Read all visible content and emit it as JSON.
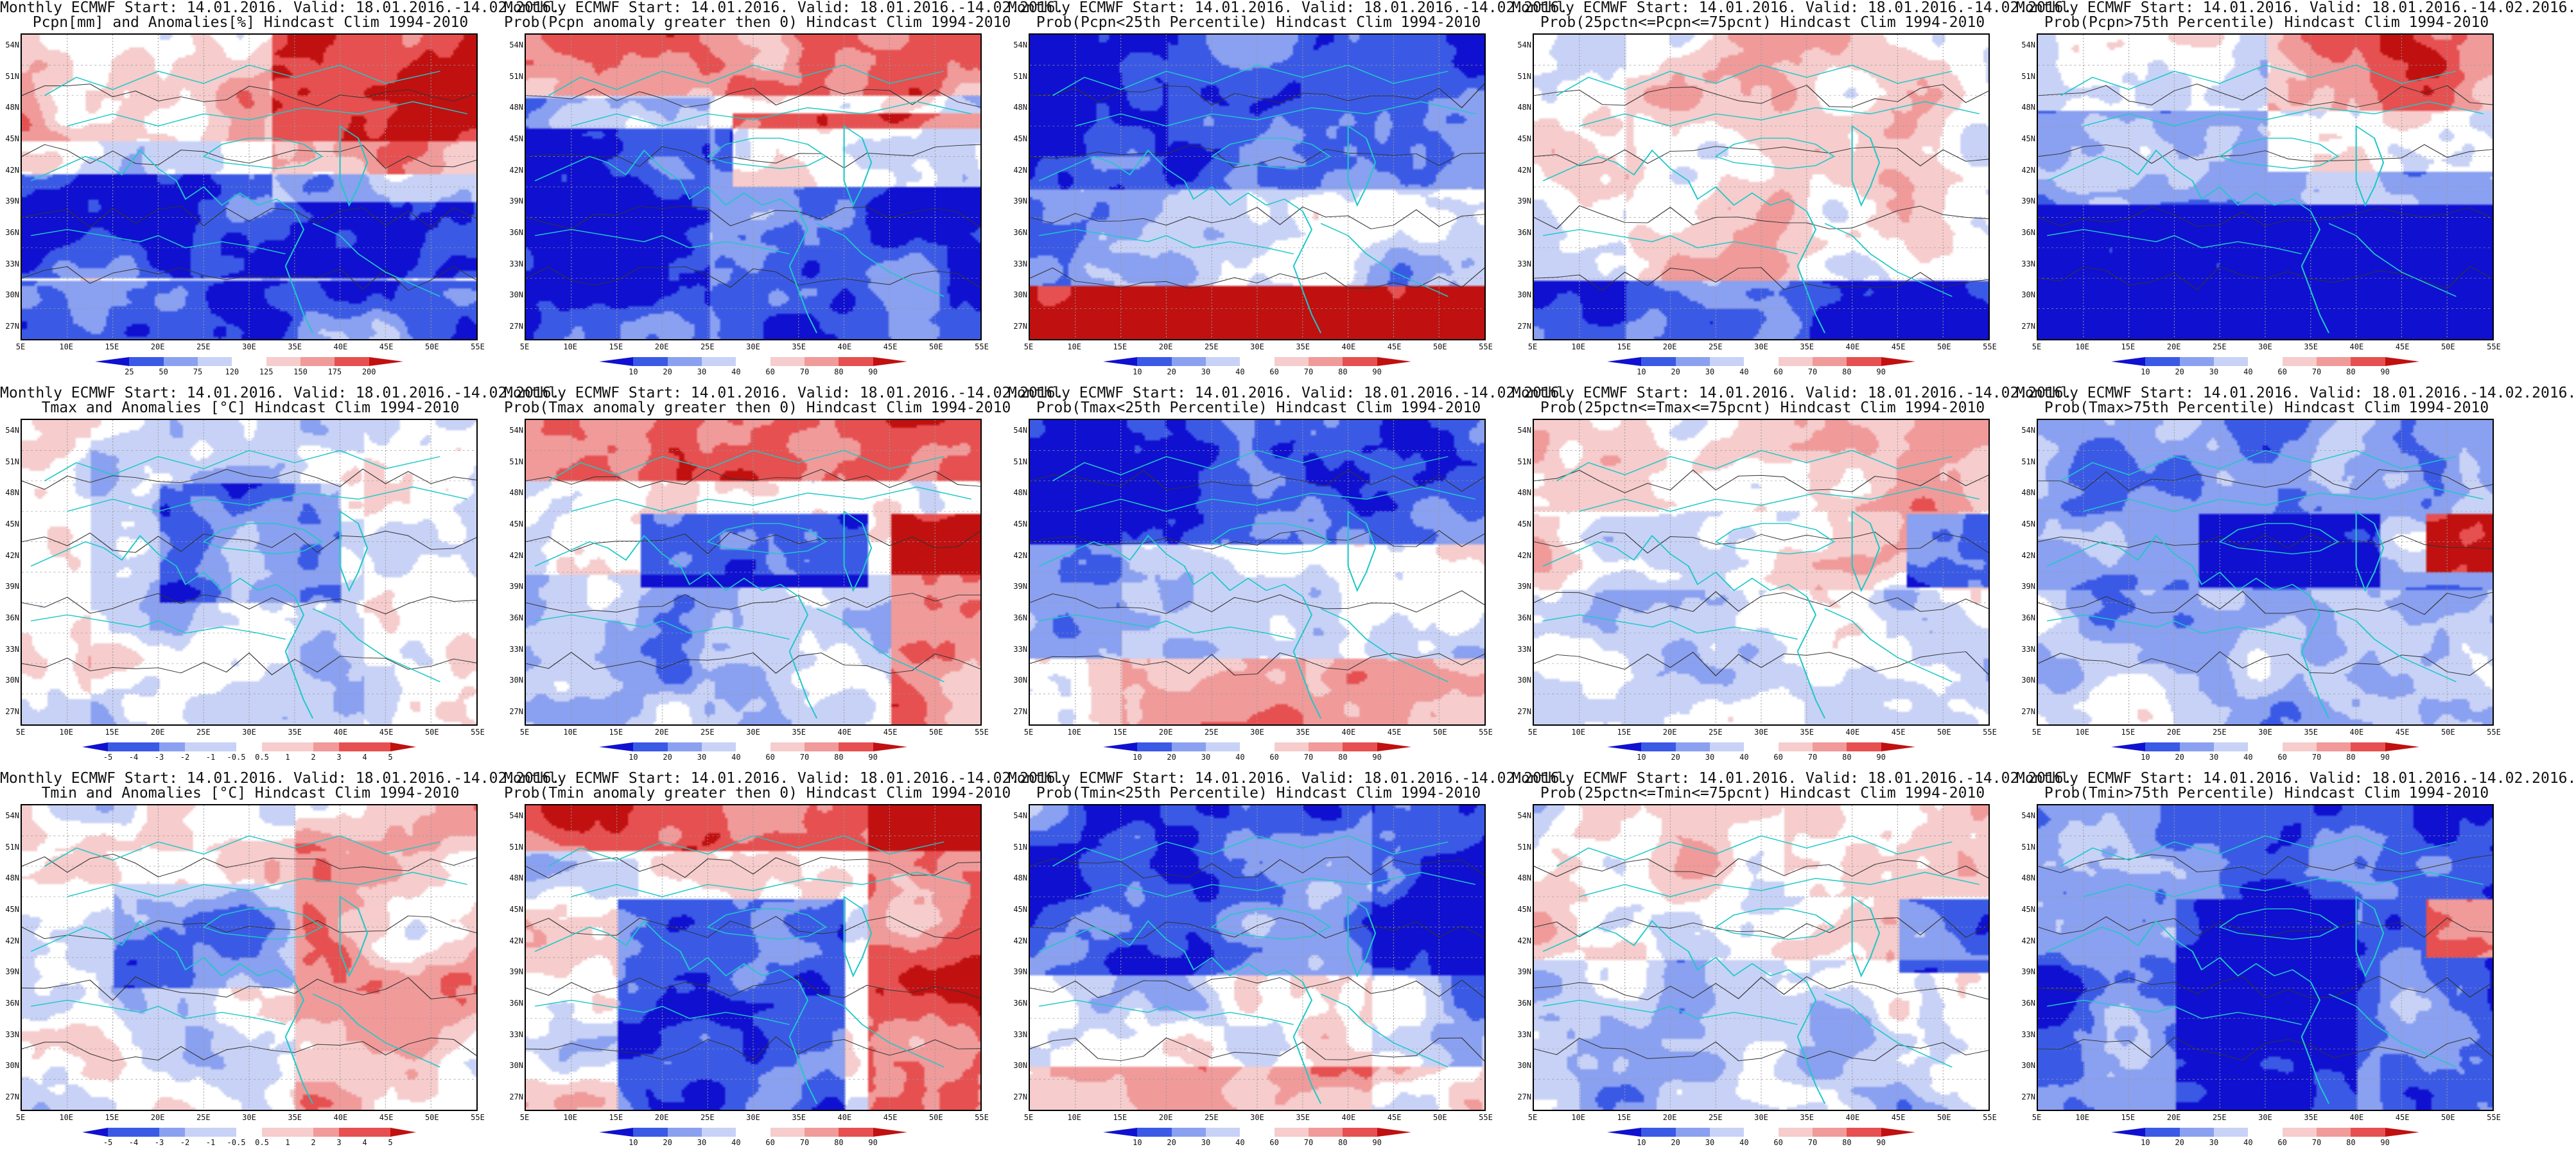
{
  "colors": {
    "dblue": "#1010d0",
    "mblue": "#3a5ae6",
    "lblue": "#8aa0f0",
    "pblue": "#c8d2f6",
    "white": "#ffffff",
    "pred": "#f6cccc",
    "lred": "#f09a9a",
    "mred": "#e65050",
    "dred": "#c01010",
    "coast": "#20c8c8",
    "contour": "#333333"
  },
  "axes": {
    "lat_labels": [
      "54N",
      "51N",
      "48N",
      "45N",
      "42N",
      "39N",
      "36N",
      "33N",
      "30N",
      "27N"
    ],
    "lon_labels": [
      "5E",
      "10E",
      "15E",
      "20E",
      "25E",
      "30E",
      "35E",
      "40E",
      "45E",
      "50E",
      "55E"
    ]
  },
  "colorbars": {
    "pcpn": [
      "25",
      "50",
      "75",
      "120",
      "125",
      "150",
      "175",
      "200"
    ],
    "prob": [
      "10",
      "20",
      "30",
      "40",
      "60",
      "70",
      "80",
      "90"
    ],
    "temp": [
      "-5",
      "-4",
      "-3",
      "-2",
      "-1",
      "-0.5",
      "0.5",
      "1",
      "2",
      "3",
      "4",
      "5"
    ]
  },
  "panels": [
    {
      "id": "r1c1",
      "line1": "Monthly ECMWF Start: 14.01.2016. Valid: 18.01.2016.-14.02.2016.",
      "line2": "Pcpn[mm] and Anomalies[%] Hindcast Clim 1994-2010",
      "bar": "pcpn",
      "scheme": "anom"
    },
    {
      "id": "r1c2",
      "line1": "Monthly ECMWF Start: 14.01.2016. Valid: 18.01.2016.-14.02.2016.",
      "line2": "Prob(Pcpn anomaly greater then 0) Hindcast Clim 1994-2010",
      "bar": "prob",
      "scheme": "prob_hi"
    },
    {
      "id": "r1c3",
      "line1": "Monthly ECMWF Start: 14.01.2016. Valid: 18.01.2016.-14.02.2016.",
      "line2": "Prob(Pcpn<25th Percentile) Hindcast Clim 1994-2010",
      "bar": "prob",
      "scheme": "prob_lo"
    },
    {
      "id": "r1c4",
      "line1": "Monthly ECMWF Start: 14.01.2016. Valid: 18.01.2016.-14.02.2016.",
      "line2": "Prob(25pctn<=Pcpn<=75pcnt) Hindcast Clim 1994-2010",
      "bar": "prob",
      "scheme": "prob_mid"
    },
    {
      "id": "r1c5",
      "line1": "Monthly ECMWF Start: 14.01.2016. Valid: 18.01.2016.-14.02.2016.",
      "line2": "Prob(Pcpn>75th Percentile) Hindcast Clim 1994-2010",
      "bar": "prob",
      "scheme": "prob_hi2"
    },
    {
      "id": "r2c1",
      "line1": "Monthly ECMWF Start: 14.01.2016. Valid: 18.01.2016.-14.02.2016.",
      "line2": "Tmax and Anomalies [°C] Hindcast Clim 1994-2010",
      "bar": "temp",
      "scheme": "tanom"
    },
    {
      "id": "r2c2",
      "line1": "Monthly ECMWF Start: 14.01.2016. Valid: 18.01.2016.-14.02.2016.",
      "line2": "Prob(Tmax anomaly greater then 0) Hindcast Clim 1994-2010",
      "bar": "prob",
      "scheme": "tprob"
    },
    {
      "id": "r2c3",
      "line1": "Monthly ECMWF Start: 14.01.2016. Valid: 18.01.2016.-14.02.2016.",
      "line2": "Prob(Tmax<25th Percentile) Hindcast Clim 1994-2010",
      "bar": "prob",
      "scheme": "tlo"
    },
    {
      "id": "r2c4",
      "line1": "Monthly ECMWF Start: 14.01.2016. Valid: 18.01.2016.-14.02.2016.",
      "line2": "Prob(25pctn<=Tmax<=75pcnt) Hindcast Clim 1994-2010",
      "bar": "prob",
      "scheme": "tmid"
    },
    {
      "id": "r2c5",
      "line1": "Monthly ECMWF Start: 14.01.2016. Valid: 18.01.2016.-14.02.2016.",
      "line2": "Prob(Tmax>75th Percentile) Hindcast Clim 1994-2010",
      "bar": "prob",
      "scheme": "thi"
    },
    {
      "id": "r3c1",
      "line1": "Monthly ECMWF Start: 14.01.2016. Valid: 18.01.2016.-14.02.2016.",
      "line2": "Tmin and Anomalies [°C] Hindcast Clim 1994-2010",
      "bar": "temp",
      "scheme": "tanom2"
    },
    {
      "id": "r3c2",
      "line1": "Monthly ECMWF Start: 14.01.2016. Valid: 18.01.2016.-14.02.2016.",
      "line2": "Prob(Tmin anomaly greater then 0) Hindcast Clim 1994-2010",
      "bar": "prob",
      "scheme": "tprob2"
    },
    {
      "id": "r3c3",
      "line1": "Monthly ECMWF Start: 14.01.2016. Valid: 18.01.2016.-14.02.2016.",
      "line2": "Prob(Tmin<25th Percentile) Hindcast Clim 1994-2010",
      "bar": "prob",
      "scheme": "tlo2"
    },
    {
      "id": "r3c4",
      "line1": "Monthly ECMWF Start: 14.01.2016. Valid: 18.01.2016.-14.02.2016.",
      "line2": "Prob(25pctn<=Tmin<=75pcnt) Hindcast Clim 1994-2010",
      "bar": "prob",
      "scheme": "tmid2"
    },
    {
      "id": "r3c5",
      "line1": "Monthly ECMWF Start: 14.01.2016. Valid: 18.01.2016.-14.02.2016.",
      "line2": "Prob(Tmin>75th Percentile) Hindcast Clim 1994-2010",
      "bar": "prob",
      "scheme": "thi2"
    }
  ]
}
